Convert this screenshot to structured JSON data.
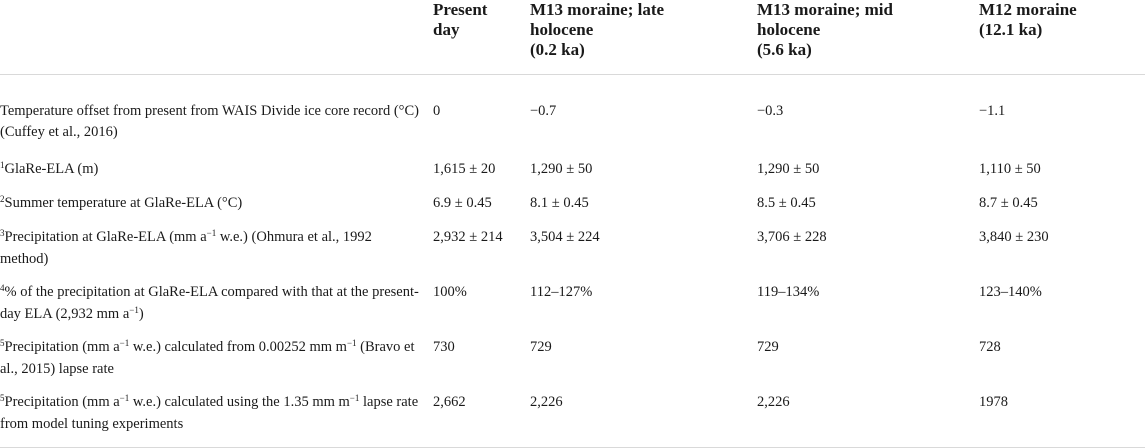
{
  "table": {
    "headers": [
      [
        ""
      ],
      [
        "Present",
        "day"
      ],
      [
        "M13 moraine; late",
        "holocene",
        "(0.2 ka)"
      ],
      [
        "M13 moraine; mid",
        "holocene",
        "(5.6 ka)"
      ],
      [
        "M12 moraine",
        "(12.1 ka)"
      ]
    ],
    "rows": [
      {
        "note": "",
        "label": "Temperature offset from present from WAIS Divide ice core record (°C) (Cuffey et al., 2016)",
        "values": [
          "0",
          "−0.7",
          "−0.3",
          "−1.1"
        ]
      },
      {
        "note": "1",
        "label": "GlaRe-ELA (m)",
        "values": [
          "1,615 ± 20",
          "1,290 ± 50",
          "1,290 ± 50",
          "1,110 ± 50"
        ]
      },
      {
        "note": "2",
        "label": "Summer temperature at GlaRe-ELA (°C)",
        "values": [
          "6.9 ± 0.45",
          "8.1 ± 0.45",
          "8.5 ± 0.45",
          "8.7 ± 0.45"
        ]
      },
      {
        "note": "3",
        "label_parts": [
          "Precipitation at GlaRe-ELA (mm a",
          "−1",
          " w.e.) (Ohmura et al., 1992 method)"
        ],
        "values": [
          "2,932 ± 214",
          "3,504 ± 224",
          "3,706 ± 228",
          "3,840 ± 230"
        ]
      },
      {
        "note": "4",
        "label_parts": [
          "% of the precipitation at GlaRe-ELA compared with that at the present-day ELA (2,932 mm a",
          "−1",
          ")"
        ],
        "values": [
          "100%",
          "112–127%",
          "119–134%",
          "123–140%"
        ]
      },
      {
        "note": "5",
        "label_parts": [
          "Precipitation (mm a",
          "−1",
          " w.e.) calculated from 0.00252 mm m",
          "−1",
          " (Bravo et al., 2015) lapse rate"
        ],
        "values": [
          "730",
          "729",
          "729",
          "728"
        ]
      },
      {
        "note": "5",
        "label_parts": [
          "Precipitation (mm a",
          "−1",
          " w.e.) calculated using the 1.35 mm m",
          "−1",
          " lapse rate from model tuning experiments"
        ],
        "values": [
          "2,662",
          "2,226",
          "2,226",
          "1978"
        ]
      }
    ]
  }
}
